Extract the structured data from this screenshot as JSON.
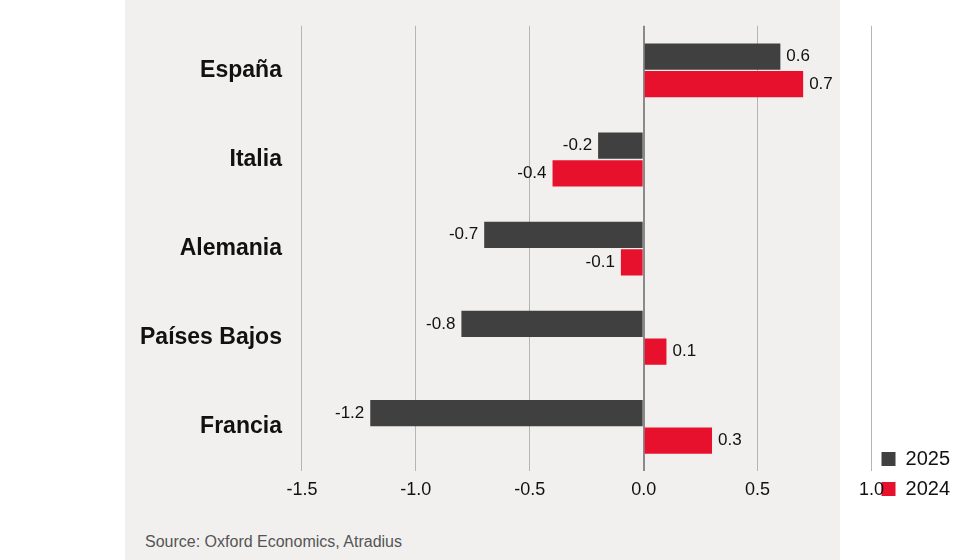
{
  "chart_data": {
    "type": "bar",
    "orientation": "horizontal",
    "source": "Source: Oxford Economics, Atradius",
    "categories": [
      "España",
      "Italia",
      "Alemania",
      "Países Bajos",
      "Francia"
    ],
    "series": [
      {
        "name": "2025",
        "color": "#404040",
        "values": [
          0.6,
          -0.2,
          -0.7,
          -0.8,
          -1.2
        ]
      },
      {
        "name": "2024",
        "color": "#e8112d",
        "values": [
          0.7,
          -0.4,
          -0.1,
          0.1,
          0.3
        ]
      }
    ],
    "xlim": [
      -1.5,
      1.0
    ],
    "xticks": [
      -1.5,
      {
        "value": -1,
        "label": "-1.0"
      },
      -0.5,
      {
        "value": 0,
        "label": "0.0"
      },
      0.5,
      {
        "value": 1,
        "label": "1.0"
      }
    ],
    "grid": true,
    "legend": "lower right",
    "data_labels": true
  }
}
